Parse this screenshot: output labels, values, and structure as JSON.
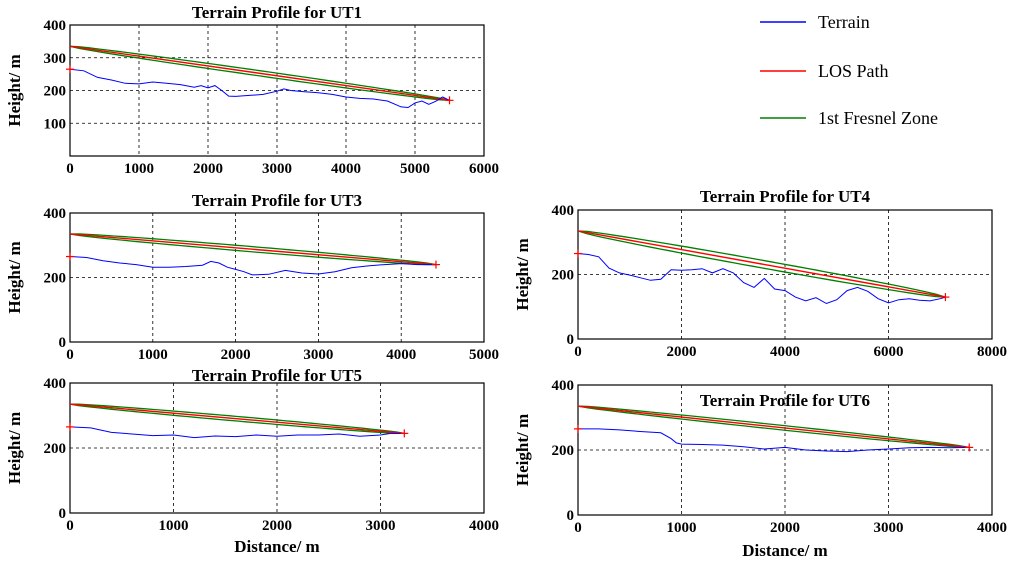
{
  "colors": {
    "terrain": "#0000ff",
    "los": "#ff0000",
    "fresnel": "#008000",
    "endpoint": "#ff0000"
  },
  "legend": {
    "placement": "top-right",
    "items": [
      {
        "label": "Terrain",
        "color_key": "terrain"
      },
      {
        "label": "LOS Path",
        "color_key": "los"
      },
      {
        "label": "1st Fresnel Zone",
        "color_key": "fresnel"
      }
    ]
  },
  "chart_data": [
    {
      "type": "line",
      "title": "Terrain Profile for UT1",
      "xlabel": "",
      "ylabel": "Height/ m",
      "xlim": [
        0,
        6000
      ],
      "ylim": [
        0,
        400
      ],
      "xticks": [
        0,
        1000,
        2000,
        3000,
        4000,
        5000,
        6000
      ],
      "yticks": [
        100,
        200,
        300,
        400
      ],
      "grid": true,
      "los": {
        "x": [
          0,
          5500
        ],
        "y": [
          335,
          170
        ]
      },
      "fresnel_clearance": 8,
      "terrain": {
        "x": [
          0,
          200,
          400,
          600,
          800,
          1000,
          1200,
          1400,
          1600,
          1800,
          1900,
          2000,
          2100,
          2200,
          2300,
          2400,
          2600,
          2800,
          3000,
          3100,
          3200,
          3400,
          3600,
          3800,
          4000,
          4200,
          4400,
          4600,
          4800,
          4900,
          5000,
          5100,
          5200,
          5300,
          5400,
          5500
        ],
        "y": [
          265,
          260,
          240,
          232,
          222,
          220,
          226,
          222,
          218,
          210,
          215,
          208,
          215,
          200,
          183,
          182,
          185,
          188,
          198,
          205,
          200,
          196,
          193,
          188,
          180,
          176,
          174,
          168,
          150,
          148,
          162,
          168,
          158,
          167,
          180,
          170
        ]
      }
    },
    {
      "type": "line",
      "title": "Terrain Profile for UT3",
      "xlabel": "",
      "ylabel": "Height/ m",
      "xlim": [
        0,
        5000
      ],
      "ylim": [
        0,
        400
      ],
      "xticks": [
        0,
        1000,
        2000,
        3000,
        4000,
        5000
      ],
      "yticks": [
        0,
        200,
        400
      ],
      "grid": true,
      "los": {
        "x": [
          0,
          4420
        ],
        "y": [
          335,
          240
        ]
      },
      "fresnel_clearance": 8,
      "terrain": {
        "x": [
          0,
          200,
          400,
          600,
          800,
          1000,
          1200,
          1400,
          1600,
          1700,
          1800,
          1900,
          2000,
          2100,
          2200,
          2400,
          2600,
          2800,
          3000,
          3200,
          3400,
          3600,
          3800,
          4000,
          4200,
          4420
        ],
        "y": [
          265,
          262,
          252,
          245,
          240,
          232,
          232,
          234,
          238,
          250,
          245,
          232,
          225,
          218,
          208,
          210,
          222,
          214,
          211,
          218,
          230,
          236,
          240,
          243,
          240,
          240
        ]
      }
    },
    {
      "type": "line",
      "title": "Terrain Profile for UT4",
      "xlabel": "",
      "ylabel": "Height/ m",
      "xlim": [
        0,
        8000
      ],
      "ylim": [
        0,
        400
      ],
      "xticks": [
        0,
        2000,
        4000,
        6000,
        8000
      ],
      "yticks": [
        0,
        200,
        400
      ],
      "grid": true,
      "los": {
        "x": [
          0,
          7100
        ],
        "y": [
          335,
          130
        ]
      },
      "fresnel_clearance": 12,
      "terrain": {
        "x": [
          0,
          200,
          400,
          600,
          800,
          1000,
          1200,
          1400,
          1600,
          1800,
          2000,
          2200,
          2400,
          2600,
          2800,
          3000,
          3200,
          3400,
          3600,
          3800,
          4000,
          4200,
          4400,
          4600,
          4800,
          5000,
          5200,
          5400,
          5600,
          5800,
          6000,
          6200,
          6400,
          6600,
          6800,
          7000,
          7100
        ],
        "y": [
          265,
          262,
          255,
          220,
          205,
          198,
          190,
          182,
          185,
          215,
          213,
          215,
          218,
          205,
          218,
          205,
          175,
          160,
          188,
          155,
          150,
          130,
          118,
          128,
          110,
          122,
          150,
          160,
          148,
          125,
          112,
          122,
          125,
          120,
          118,
          125,
          130
        ]
      }
    },
    {
      "type": "line",
      "title": "Terrain Profile for UT5",
      "xlabel": "Distance/ m",
      "ylabel": "Height/ m",
      "xlim": [
        0,
        4000
      ],
      "ylim": [
        0,
        400
      ],
      "xticks": [
        0,
        1000,
        2000,
        3000,
        4000
      ],
      "yticks": [
        0,
        200,
        400
      ],
      "grid": true,
      "los": {
        "x": [
          0,
          3230
        ],
        "y": [
          335,
          245
        ]
      },
      "fresnel_clearance": 7,
      "terrain": {
        "x": [
          0,
          200,
          400,
          600,
          800,
          1000,
          1200,
          1400,
          1600,
          1800,
          2000,
          2200,
          2400,
          2600,
          2800,
          3000,
          3100,
          3230
        ],
        "y": [
          265,
          262,
          248,
          243,
          238,
          240,
          232,
          237,
          235,
          240,
          236,
          240,
          240,
          243,
          236,
          240,
          245,
          245
        ]
      }
    },
    {
      "type": "line",
      "title": "Terrain Profile for UT6",
      "xlabel": "Distance/ m",
      "ylabel": "Height/ m",
      "xlim": [
        0,
        4000
      ],
      "ylim": [
        0,
        400
      ],
      "xticks": [
        0,
        1000,
        2000,
        3000,
        4000
      ],
      "yticks": [
        0,
        200,
        400
      ],
      "grid": true,
      "los": {
        "x": [
          0,
          3780
        ],
        "y": [
          335,
          208
        ]
      },
      "fresnel_clearance": 7,
      "terrain": {
        "x": [
          0,
          200,
          400,
          600,
          800,
          900,
          950,
          1000,
          1200,
          1400,
          1600,
          1800,
          2000,
          2200,
          2400,
          2600,
          2800,
          3000,
          3200,
          3400,
          3600,
          3780
        ],
        "y": [
          265,
          265,
          262,
          257,
          253,
          235,
          222,
          218,
          217,
          215,
          210,
          203,
          208,
          200,
          197,
          195,
          200,
          203,
          207,
          208,
          207,
          208
        ]
      }
    }
  ]
}
